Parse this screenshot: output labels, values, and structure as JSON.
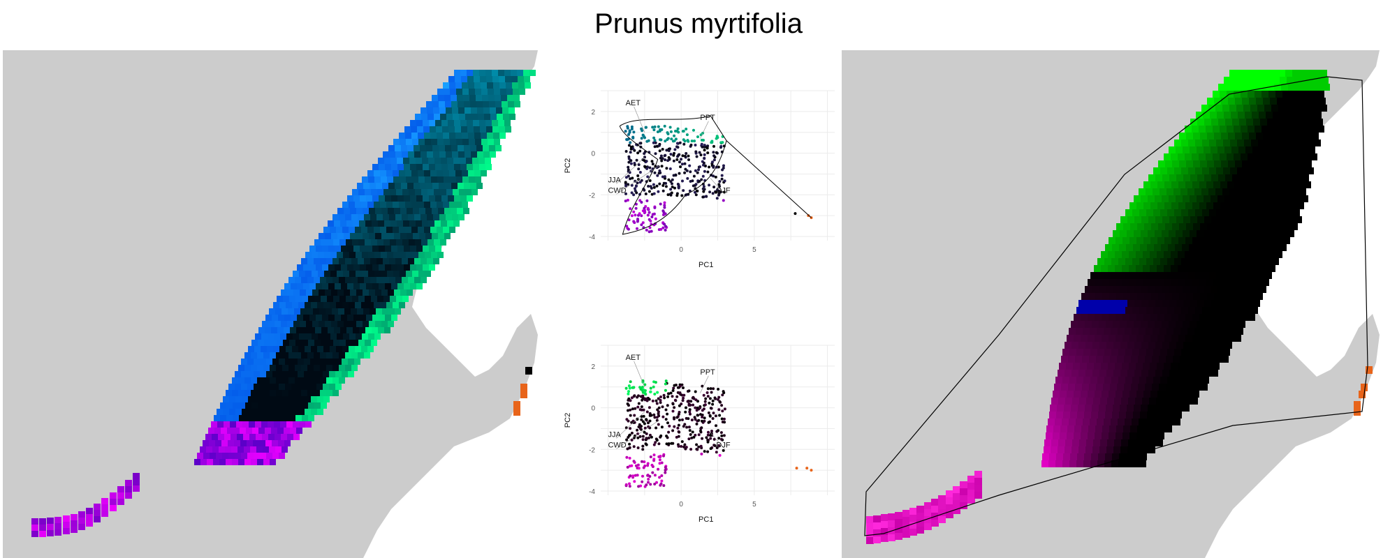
{
  "title": "Prunus myrtifolia",
  "colors": {
    "map_background": "#cccccc",
    "land": "#ffffff",
    "outlier": "#e8641a",
    "grid": "#ebebeb"
  },
  "chart_data": [
    {
      "type": "heatmap",
      "panel": "left-map",
      "description_colors": [
        "#00e0ff",
        "#1460ff",
        "#00ff99",
        "#000000",
        "#c000ff",
        "#ff00ff",
        "#e8641a"
      ]
    },
    {
      "type": "scatter",
      "panel": "pca-top",
      "xlabel": "PC1",
      "ylabel": "PC2",
      "xlim": [
        -5.5,
        10.5
      ],
      "ylim": [
        -4.2,
        3.0
      ],
      "xticks": [
        0,
        5
      ],
      "yticks": [
        2,
        0,
        -2,
        -4
      ],
      "variables": [
        "AET",
        "PPT",
        "JJA",
        "CWD",
        "DJF"
      ],
      "outliers": [
        [
          7.8,
          -2.9
        ],
        [
          8.7,
          -3.0
        ],
        [
          8.9,
          -3.1
        ]
      ]
    },
    {
      "type": "scatter",
      "panel": "pca-bottom",
      "xlabel": "PC1",
      "ylabel": "PC2",
      "xlim": [
        -5.5,
        10.5
      ],
      "ylim": [
        -4.2,
        3.0
      ],
      "xticks": [
        0,
        5
      ],
      "yticks": [
        2,
        0,
        -2,
        -4
      ],
      "variables": [
        "AET",
        "PPT",
        "JJA",
        "CWD",
        "DJF"
      ],
      "outliers": [
        [
          7.9,
          -2.9
        ],
        [
          8.6,
          -2.9
        ],
        [
          8.9,
          -3.0
        ]
      ]
    },
    {
      "type": "heatmap",
      "panel": "right-map",
      "description_colors": [
        "#00ff00",
        "#000000",
        "#0000aa",
        "#ff00cc",
        "#e8641a"
      ]
    }
  ]
}
